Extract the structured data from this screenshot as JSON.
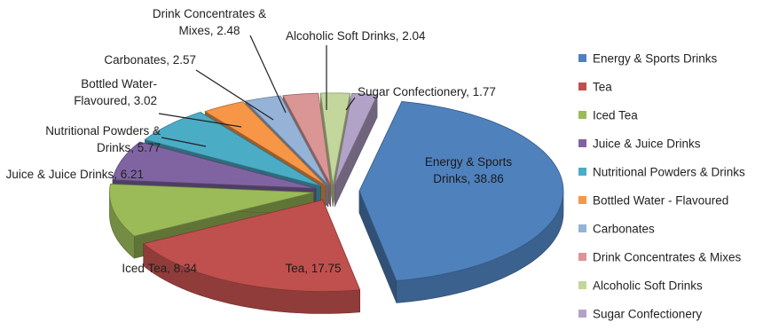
{
  "chart_data": {
    "type": "pie",
    "style": "3d-exploded",
    "categories": [
      "Energy & Sports Drinks",
      "Tea",
      "Iced Tea",
      "Juice & Juice Drinks",
      "Nutritional Powders & Drinks",
      "Bottled Water - Flavoured",
      "Carbonates",
      "Drink Concentrates & Mixes",
      "Alcoholic Soft Drinks",
      "Sugar Confectionery"
    ],
    "values": [
      38.86,
      17.75,
      8.34,
      6.21,
      5.77,
      3.02,
      2.57,
      2.48,
      2.04,
      1.77
    ],
    "data_labels": [
      [
        "Energy & Sports",
        "Drinks, 38.86"
      ],
      [
        "Tea, 17.75"
      ],
      [
        "Iced Tea, 8.34"
      ],
      [
        "Juice & Juice Drinks, 6.21"
      ],
      [
        "Nutritional Powders &",
        "Drinks, 5.77"
      ],
      [
        "Bottled Water-",
        "Flavoured, 3.02"
      ],
      [
        "Carbonates, 2.57"
      ],
      [
        "Drink Concentrates &",
        "Mixes, 2.48"
      ],
      [
        "Alcoholic Soft Drinks, 2.04"
      ],
      [
        "Sugar Confectionery, 1.77"
      ]
    ],
    "colors": [
      "#4F81BD",
      "#C0504D",
      "#9BBB59",
      "#8064A2",
      "#4BACC6",
      "#F79646",
      "#95B3D7",
      "#D99694",
      "#C3D69B",
      "#B3A2C7"
    ],
    "legend_position": "right"
  }
}
